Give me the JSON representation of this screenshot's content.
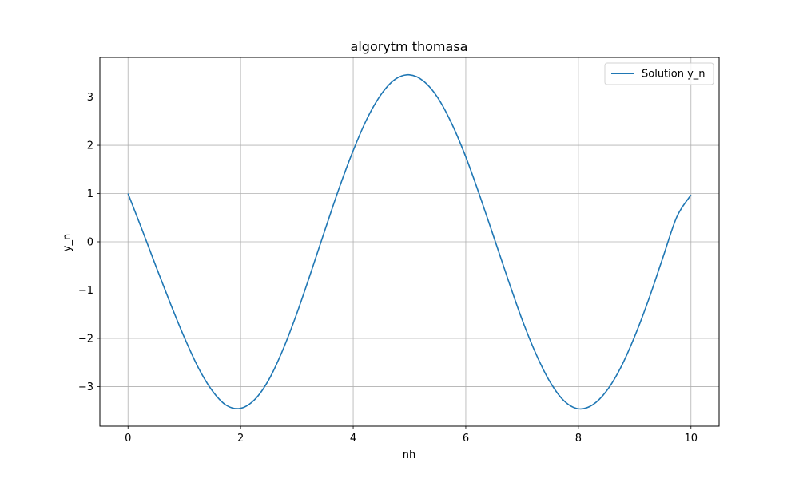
{
  "chart_data": {
    "type": "line",
    "title": "algorytm thomasa",
    "xlabel": "nh",
    "ylabel": "y_n",
    "xlim": [
      -0.5,
      10.5
    ],
    "ylim": [
      -3.82,
      3.82
    ],
    "xticks": [
      0,
      2,
      4,
      6,
      8,
      10
    ],
    "yticks": [
      -3,
      -2,
      -1,
      0,
      1,
      2,
      3
    ],
    "xtick_labels": [
      "0",
      "2",
      "4",
      "6",
      "8",
      "10"
    ],
    "ytick_labels": [
      "−3",
      "−2",
      "−1",
      "0",
      "1",
      "2",
      "3"
    ],
    "grid": true,
    "legend": {
      "position": "top-right",
      "entries": [
        "Solution y_n"
      ]
    },
    "series": [
      {
        "name": "Solution y_n",
        "color": "#1f77b4",
        "x": [
          0.0,
          0.25,
          0.5,
          0.75,
          1.0,
          1.25,
          1.5,
          1.75,
          2.0,
          2.25,
          2.5,
          2.75,
          3.0,
          3.25,
          3.5,
          3.75,
          4.0,
          4.25,
          4.5,
          4.75,
          5.0,
          5.25,
          5.5,
          5.75,
          6.0,
          6.25,
          6.5,
          6.75,
          7.0,
          7.25,
          7.5,
          7.75,
          8.0,
          8.25,
          8.5,
          8.75,
          9.0,
          9.25,
          9.5,
          9.75,
          10.0
        ],
        "y": [
          1.0,
          0.25,
          -0.52,
          -1.27,
          -1.98,
          -2.61,
          -3.09,
          -3.39,
          -3.45,
          -3.27,
          -2.86,
          -2.24,
          -1.48,
          -0.63,
          0.25,
          1.11,
          1.89,
          2.56,
          3.06,
          3.37,
          3.46,
          3.33,
          2.99,
          2.45,
          1.76,
          0.95,
          0.09,
          -0.78,
          -1.61,
          -2.33,
          -2.91,
          -3.3,
          -3.46,
          -3.38,
          -3.09,
          -2.61,
          -1.96,
          -1.19,
          -0.33,
          0.52,
          0.97
        ]
      }
    ]
  }
}
